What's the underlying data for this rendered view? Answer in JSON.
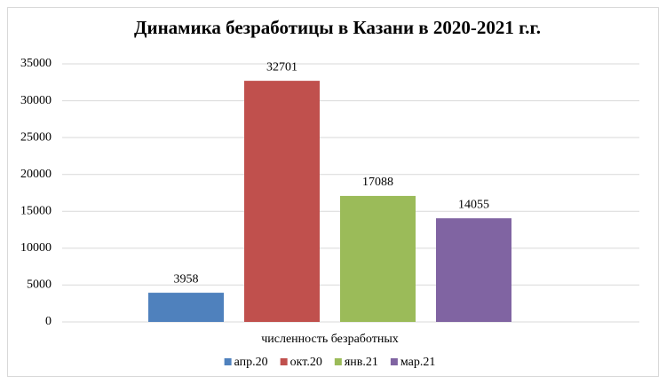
{
  "chart_data": {
    "type": "bar",
    "title": "Динамика безработицы в Казани в 2020-2021 г.г.",
    "categories": [
      "численность безработных"
    ],
    "series": [
      {
        "name": "апр.20",
        "color": "#4f81bd",
        "values": [
          3958
        ]
      },
      {
        "name": "окт.20",
        "color": "#c0504d",
        "values": [
          32701
        ]
      },
      {
        "name": "янв.21",
        "color": "#9bbb59",
        "values": [
          17088
        ]
      },
      {
        "name": "мар.21",
        "color": "#8064a2",
        "values": [
          14055
        ]
      }
    ],
    "ylim": [
      0,
      35000
    ],
    "yticks": [
      0,
      5000,
      10000,
      15000,
      20000,
      25000,
      30000,
      35000
    ],
    "grid": true,
    "legend": "bottom"
  }
}
